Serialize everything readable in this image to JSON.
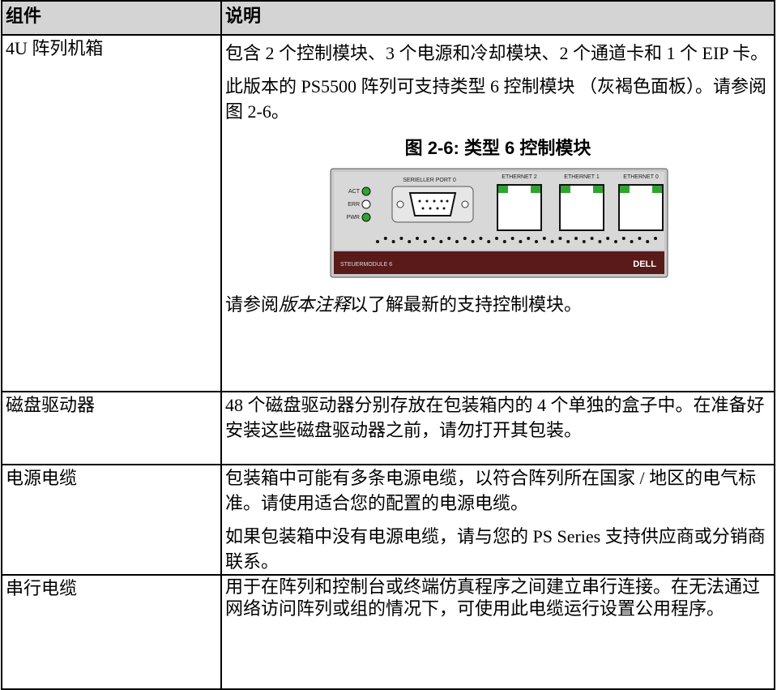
{
  "table": {
    "header": [
      "组件",
      "说明"
    ],
    "rows": [
      {
        "component": "4U 阵列机箱",
        "paragraphs": [
          "包含 2 个控制模块、3 个电源和冷却模块、2 个通道卡和 1 个 EIP 卡。",
          "此版本的 PS5500 阵列可支持类型 6 控制模块 （灰褐色面板）。请参阅图 2-6。"
        ],
        "figure": {
          "caption": "图 2-6: 类型 6 控制模块",
          "labels": {
            "act": "ACT",
            "err": "ERR",
            "pwr": "PWR",
            "serial": "SERIELLER PORT 0",
            "eth2": "ETHERNET 2",
            "eth1": "ETHERNET 1",
            "eth0": "ETHERNET 0",
            "module": "STEUERMODULE 6",
            "brand": "DELL"
          }
        },
        "note": [
          "请参阅",
          "版本注释",
          "以了解最新的支持控制模块。"
        ]
      },
      {
        "component": "磁盘驱动器",
        "paragraphs": [
          "48 个磁盘驱动器分别存放在包装箱内的 4 个单独的盒子中。在准备好安装这些磁盘驱动器之前，请勿打开其包装。"
        ]
      },
      {
        "component": "电源电缆",
        "paragraphs": [
          "包装箱中可能有多条电源电缆，以符合阵列所在国家 / 地区的电气标准。请使用适合您的配置的电源电缆。",
          "如果包装箱中没有电源电缆，请与您的 PS Series 支持供应商或分销商联系。"
        ]
      },
      {
        "component": "串行电缆",
        "paragraphs": [
          "用于在阵列和控制台或终端仿真程序之间建立串行连接。在无法通过网络访问阵列或组的情况下，可使用此电缆运行设置公用程序。"
        ]
      }
    ]
  }
}
